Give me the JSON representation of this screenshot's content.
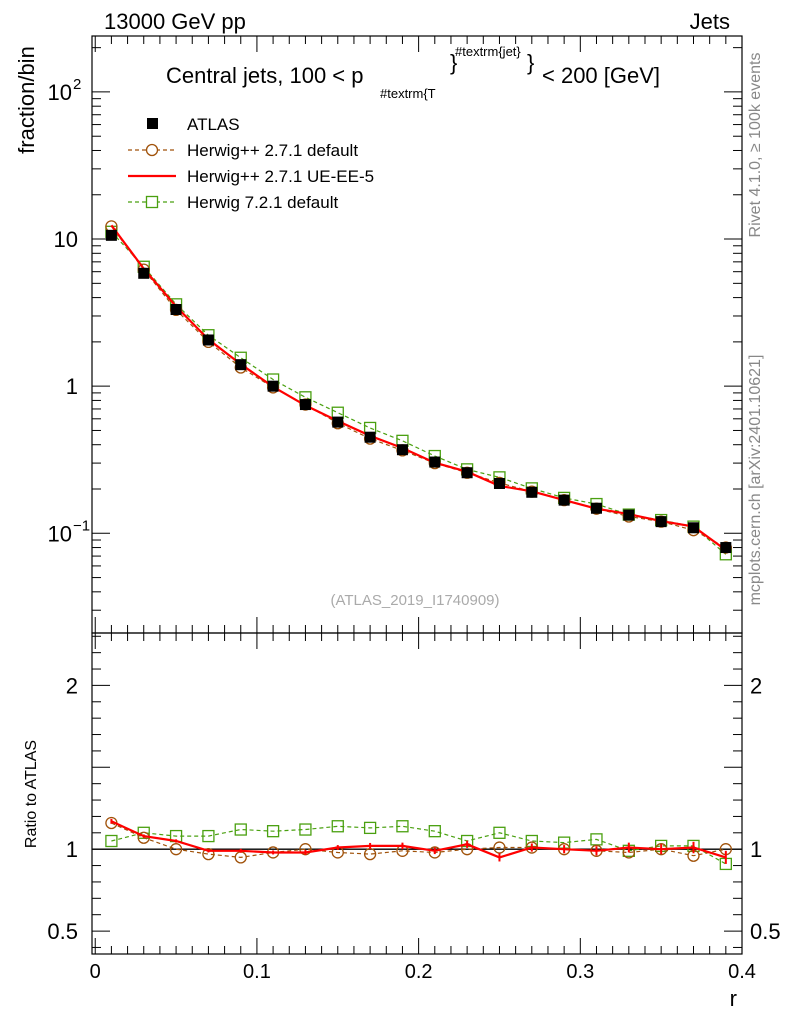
{
  "header": {
    "left": "13000 GeV pp",
    "right": "Jets",
    "side_top": "Rivet 4.1.0, ≥ 100k events",
    "side_bottom": "mcplots.cern.ch [arXiv:2401.10621]"
  },
  "chart_data": [
    {
      "type": "line",
      "panel": "main",
      "title": "Central jets, 100 < p",
      "title_sub": "#textrm{T",
      "title_sup": "#textrm{jet}",
      "title_tail": "< 200 [GeV]",
      "ylabel": "fraction/bin",
      "yscale": "log",
      "ylim": [
        0.021,
        240
      ],
      "xlim": [
        -0.002,
        0.4
      ],
      "yticks": [
        {
          "value": 100,
          "base": "10",
          "exp": "2"
        },
        {
          "value": 10,
          "base": "10",
          "exp": ""
        },
        {
          "value": 1,
          "base": "1",
          "exp": ""
        },
        {
          "value": 0.1,
          "base": "10",
          "exp": "−1"
        }
      ],
      "x": [
        0.01,
        0.03,
        0.05,
        0.07,
        0.09,
        0.11,
        0.13,
        0.15,
        0.17,
        0.19,
        0.21,
        0.23,
        0.25,
        0.27,
        0.29,
        0.31,
        0.33,
        0.35,
        0.37,
        0.39
      ],
      "watermark": "(ATLAS_2019_I1740909)",
      "series": [
        {
          "name": "ATLAS",
          "style": "data",
          "color": "#000000",
          "values": [
            10.6,
            5.85,
            3.32,
            2.06,
            1.4,
            1.0,
            0.75,
            0.57,
            0.45,
            0.37,
            0.305,
            0.258,
            0.218,
            0.19,
            0.168,
            0.148,
            0.133,
            0.12,
            0.109,
            0.08
          ]
        },
        {
          "name": "Herwig++ 2.7.1 default",
          "style": "circle-dashed",
          "color": "#a0520a",
          "values": [
            12.2,
            6.2,
            3.3,
            2.0,
            1.34,
            0.98,
            0.75,
            0.56,
            0.44,
            0.366,
            0.3,
            0.258,
            0.22,
            0.192,
            0.168,
            0.147,
            0.13,
            0.12,
            0.105,
            0.08
          ]
        },
        {
          "name": "Herwig++ 2.7.1 UE-EE-5",
          "style": "solid",
          "color": "#ff0000",
          "values": [
            12.4,
            6.3,
            3.48,
            2.08,
            1.41,
            0.99,
            0.74,
            0.58,
            0.46,
            0.38,
            0.302,
            0.262,
            0.21,
            0.193,
            0.168,
            0.147,
            0.135,
            0.121,
            0.111,
            0.077
          ]
        },
        {
          "name": "Herwig 7.2.1 default",
          "style": "square-dashed",
          "color": "#4aa010",
          "values": [
            11.2,
            6.48,
            3.6,
            2.22,
            1.56,
            1.11,
            0.84,
            0.66,
            0.52,
            0.425,
            0.335,
            0.272,
            0.24,
            0.202,
            0.174,
            0.158,
            0.134,
            0.123,
            0.111,
            0.072
          ]
        }
      ]
    },
    {
      "type": "line",
      "panel": "ratio",
      "ylabel": "Ratio to ATLAS",
      "xlabel": "r",
      "ylim": [
        0.36,
        2.32
      ],
      "xlim": [
        -0.002,
        0.4
      ],
      "yticks": [
        {
          "value": 2,
          "label": "2"
        },
        {
          "value": 1,
          "label": "1"
        },
        {
          "value": 0.5,
          "label": "0.5"
        }
      ],
      "xticks": [
        {
          "value": 0,
          "label": "0"
        },
        {
          "value": 0.1,
          "label": "0.1"
        },
        {
          "value": 0.2,
          "label": "0.2"
        },
        {
          "value": 0.3,
          "label": "0.3"
        },
        {
          "value": 0.4,
          "label": "0.4"
        }
      ],
      "reference_line": 1,
      "x": [
        0.01,
        0.03,
        0.05,
        0.07,
        0.09,
        0.11,
        0.13,
        0.15,
        0.17,
        0.19,
        0.21,
        0.23,
        0.25,
        0.27,
        0.29,
        0.31,
        0.33,
        0.35,
        0.37,
        0.39
      ],
      "series": [
        {
          "name": "Herwig++ 2.7.1 default",
          "style": "circle-dashed",
          "color": "#a0520a",
          "values": [
            1.16,
            1.07,
            1.0,
            0.97,
            0.95,
            0.98,
            1.0,
            0.98,
            0.97,
            0.99,
            0.98,
            1.0,
            1.01,
            1.01,
            1.0,
            0.99,
            0.98,
            1.0,
            0.96,
            1.0
          ]
        },
        {
          "name": "Herwig++ 2.7.1 UE-EE-5",
          "style": "solid",
          "color": "#ff0000",
          "values": [
            1.17,
            1.08,
            1.05,
            0.99,
            0.99,
            0.98,
            0.98,
            1.01,
            1.02,
            1.02,
            0.99,
            1.03,
            0.95,
            1.01,
            1.0,
            0.99,
            1.01,
            1.0,
            1.01,
            0.95
          ],
          "errors": [
            0.015,
            0.01,
            0.01,
            0.01,
            0.012,
            0.012,
            0.015,
            0.015,
            0.018,
            0.02,
            0.02,
            0.022,
            0.025,
            0.025,
            0.025,
            0.028,
            0.03,
            0.03,
            0.035,
            0.04
          ]
        },
        {
          "name": "Herwig 7.2.1 default",
          "style": "square-dashed",
          "color": "#4aa010",
          "values": [
            1.05,
            1.1,
            1.08,
            1.08,
            1.12,
            1.11,
            1.12,
            1.14,
            1.13,
            1.14,
            1.11,
            1.05,
            1.1,
            1.05,
            1.04,
            1.06,
            0.99,
            1.02,
            1.02,
            0.91
          ]
        }
      ]
    }
  ]
}
